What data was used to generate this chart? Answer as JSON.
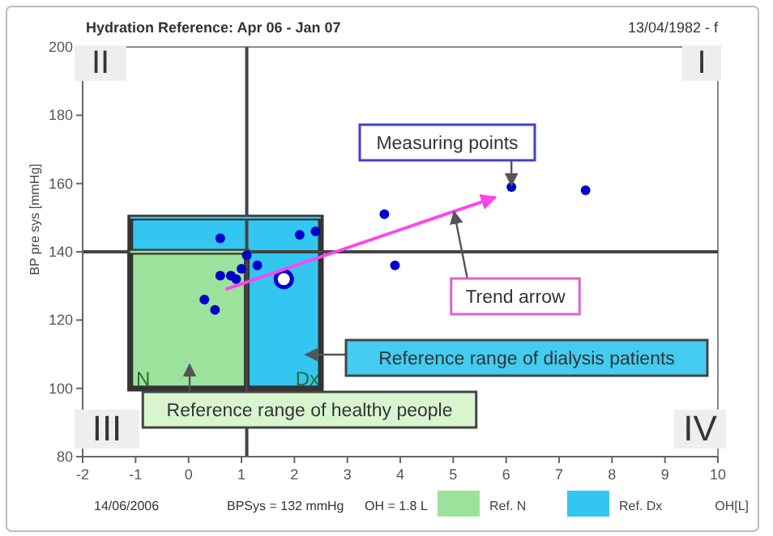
{
  "chart_data": {
    "type": "scatter",
    "title": "Hydration Reference: Apr 06 - Jan 07",
    "subtitle": "13/04/1982 - f",
    "ylabel": "BP pre sys [mmHg]",
    "xlabel": "OH[L]",
    "xlim": [
      -2,
      10
    ],
    "xticks": [
      -2,
      -1,
      0,
      1,
      2,
      3,
      4,
      5,
      6,
      7,
      8,
      9,
      10
    ],
    "ylim": [
      80,
      200
    ],
    "yticks": [
      80,
      100,
      120,
      140,
      160,
      180,
      200
    ],
    "grid": false,
    "legend": "bottom",
    "series": [
      {
        "name": "Ref. Dx",
        "type": "line",
        "color": "#33c6f0",
        "x": [
          -1.1,
          2.5
        ],
        "values": [
          150,
          150
        ],
        "lower": [
          100,
          100
        ],
        "upper": [
          150,
          150
        ]
      },
      {
        "name": "Ref. N",
        "type": "line",
        "color": "#9be39c",
        "x": [
          -1.1,
          1.1
        ],
        "values": [
          140,
          140
        ],
        "lower": [
          100,
          100
        ],
        "upper": [
          140,
          140
        ]
      },
      {
        "marker": "circle",
        "color": "#0000c8",
        "x": [
          0.6,
          2.1,
          2.4,
          1.1,
          0.6,
          0.8,
          0.9,
          1.0,
          1.3,
          0.3,
          0.5,
          3.7,
          3.9,
          6.1,
          7.5
        ],
        "values": [
          144,
          145,
          146,
          139,
          133,
          133,
          132,
          135,
          136,
          126,
          123,
          151,
          136,
          159,
          158
        ]
      },
      {
        "marker": "circle",
        "color": "#0000c8",
        "x": [
          1.8
        ],
        "values": [
          132
        ]
      },
      {
        "type": "line",
        "color": "#ff44ee",
        "x": [
          0.7,
          5.8
        ],
        "values": [
          129,
          156
        ]
      }
    ],
    "ref_lines": [
      {
        "axis": "x",
        "value": 1.1,
        "color": "#444444"
      },
      {
        "axis": "y",
        "value": 140,
        "color": "#444444"
      }
    ],
    "annotations": [
      {
        "text": "Measuring points",
        "x": 6.1,
        "y": 159
      },
      {
        "text": "Trend arrow",
        "x": 5,
        "y": 153
      },
      "Reference range of dialysis patients",
      "Reference range of healthy people",
      "I",
      "II",
      "III",
      "IV",
      "N",
      "Dx",
      "14/06/2006",
      "BPSys = 132 mmHg",
      "OH = 1.8 L"
    ]
  }
}
